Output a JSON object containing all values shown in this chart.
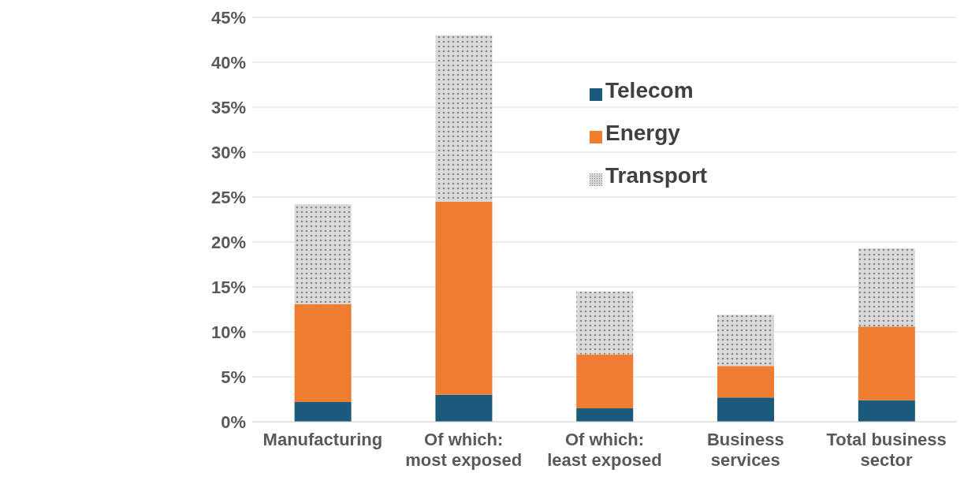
{
  "chart_data": {
    "type": "bar",
    "stacked": true,
    "categories": [
      "Manufacturing",
      "Of which:\nmost exposed",
      "Of which:\nleast exposed",
      "Business\nservices",
      "Total business\nsector"
    ],
    "series": [
      {
        "name": "Telecom",
        "color": "#1b5a7a",
        "values": [
          2.2,
          3.0,
          1.5,
          2.7,
          2.4
        ]
      },
      {
        "name": "Energy",
        "color": "#ed7d31",
        "values": [
          10.9,
          21.5,
          6.0,
          3.5,
          8.2
        ]
      },
      {
        "name": "Transport",
        "color": "#d9d9d9",
        "values": [
          11.1,
          18.5,
          7.0,
          5.7,
          8.7
        ]
      }
    ],
    "ylim": [
      0,
      45
    ],
    "yticks": [
      {
        "value": 0,
        "label": "0%"
      },
      {
        "value": 5,
        "label": "5%"
      },
      {
        "value": 10,
        "label": "10%"
      },
      {
        "value": 15,
        "label": "15%"
      },
      {
        "value": 20,
        "label": "20%"
      },
      {
        "value": 25,
        "label": "25%"
      },
      {
        "value": 30,
        "label": "30%"
      },
      {
        "value": 35,
        "label": "35%"
      },
      {
        "value": 40,
        "label": "40%"
      },
      {
        "value": 45,
        "label": "45%"
      }
    ],
    "grid": "y",
    "legend": "top right"
  }
}
